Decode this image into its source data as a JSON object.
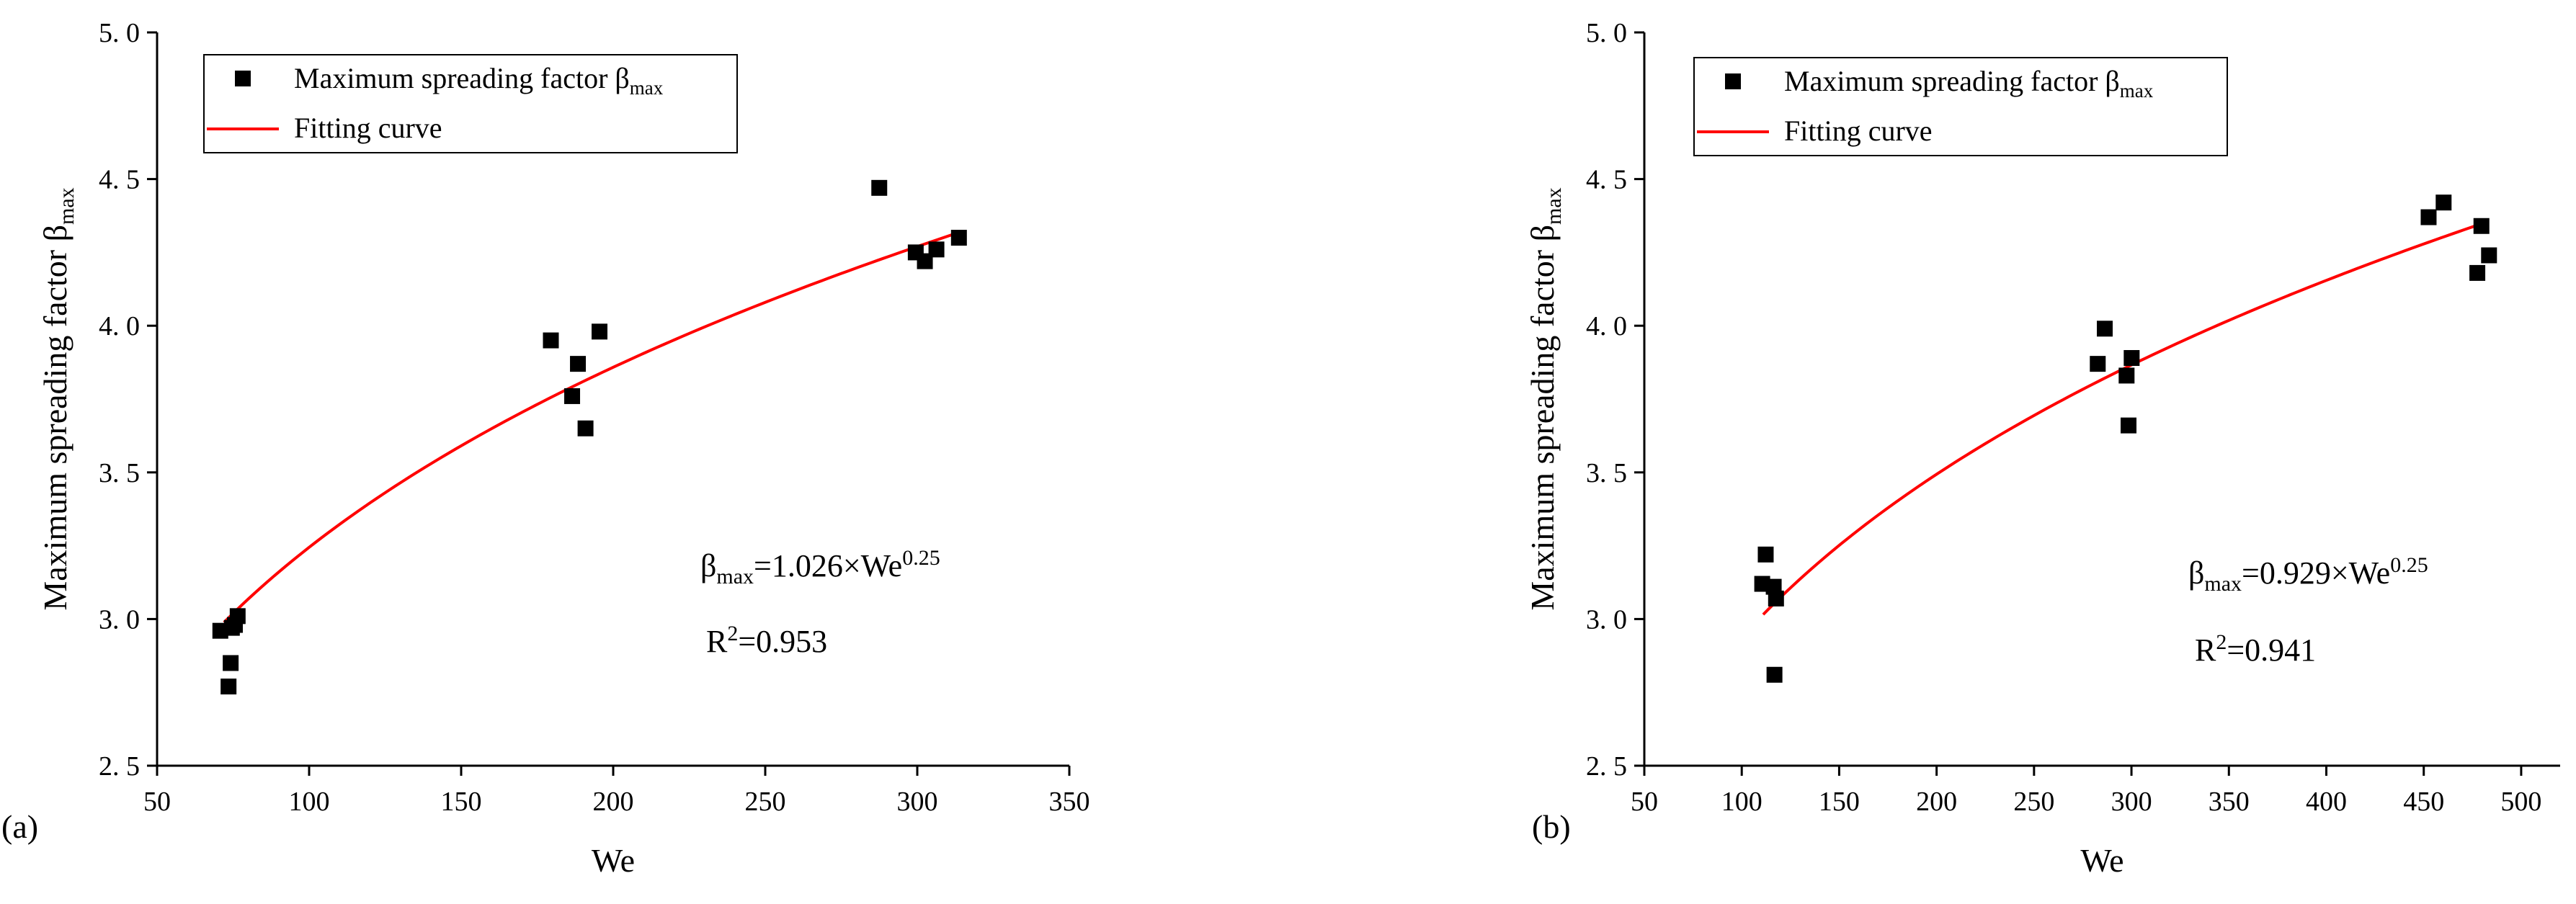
{
  "colors": {
    "points": "#000000",
    "fit": "#ff0000",
    "axis": "#000000"
  },
  "chart_data": [
    {
      "type": "scatter",
      "panel_label": "(a)",
      "xlabel": "We",
      "ylabel": "Maximum spreading factor β",
      "ylabel_sub": "max",
      "xlim": [
        50,
        350
      ],
      "ylim": [
        2.5,
        5.0
      ],
      "xticks": [
        50,
        100,
        150,
        200,
        250,
        300,
        350
      ],
      "yticks": [
        2.5,
        3.0,
        3.5,
        4.0,
        4.5,
        5.0
      ],
      "ytick_labels": [
        "2. 5",
        "3. 0",
        "3. 5",
        "4. 0",
        "4. 5",
        "5. 0"
      ],
      "grid": false,
      "legend_position": "top-left",
      "legend": [
        {
          "label": "Maximum spreading factor β",
          "sub": "max",
          "marker": "square"
        },
        {
          "label": "Fitting curve",
          "marker": "line"
        }
      ],
      "series": [
        {
          "name": "Maximum spreading factor βmax",
          "x": [
            70.8,
            74.6,
            75.6,
            74.2,
            73.5,
            76.5,
            179.5,
            188.4,
            186.5,
            195.5,
            190.9,
            287.5,
            299.5,
            302.5,
            306.3,
            313.7
          ],
          "y": [
            2.96,
            2.97,
            2.98,
            2.85,
            2.77,
            3.01,
            3.95,
            3.87,
            3.76,
            3.98,
            3.65,
            4.47,
            4.25,
            4.22,
            4.26,
            4.3
          ]
        },
        {
          "name": "Fitting curve",
          "type": "line",
          "coef": 1.026,
          "exponent": 0.25,
          "x_range": [
            72,
            313
          ]
        }
      ],
      "annotations": {
        "equation_prefix": "β",
        "equation_sub": "max",
        "equation_mid": "=1.026×We",
        "equation_sup": "0.25",
        "r2_prefix": "R",
        "r2_sup": "2",
        "r2_value": "=0.953"
      }
    },
    {
      "type": "scatter",
      "panel_label": "(b)",
      "xlabel": "We",
      "ylabel": "Maximum spreading factor β",
      "ylabel_sub": "max",
      "xlim": [
        50,
        520
      ],
      "ylim": [
        2.5,
        5.0
      ],
      "xticks": [
        50,
        100,
        150,
        200,
        250,
        300,
        350,
        400,
        450,
        500
      ],
      "yticks": [
        2.5,
        3.0,
        3.5,
        4.0,
        4.5,
        5.0
      ],
      "ytick_labels": [
        "2. 5",
        "3. 0",
        "3. 5",
        "4. 0",
        "4. 5",
        "5. 0"
      ],
      "grid": false,
      "legend_position": "top-left",
      "legend": [
        {
          "label": "Maximum spreading factor β",
          "sub": "max",
          "marker": "square"
        },
        {
          "label": "Fitting curve",
          "marker": "line"
        }
      ],
      "series": [
        {
          "name": "Maximum spreading factor βmax",
          "x": [
            110.5,
            112.3,
            116.4,
            117.6,
            116.8,
            282.7,
            286.3,
            297.5,
            300.1,
            298.5,
            452.5,
            460.2,
            479.6,
            477.5,
            483.5
          ],
          "y": [
            3.12,
            3.22,
            3.11,
            3.07,
            2.81,
            3.87,
            3.99,
            3.83,
            3.89,
            3.66,
            4.37,
            4.42,
            4.34,
            4.18,
            4.24
          ]
        },
        {
          "name": "Fitting curve",
          "type": "line",
          "coef": 0.929,
          "exponent": 0.25,
          "x_range": [
            111,
            480
          ]
        }
      ],
      "annotations": {
        "equation_prefix": "β",
        "equation_sub": "max",
        "equation_mid": "=0.929×We",
        "equation_sup": "0.25",
        "r2_prefix": "R",
        "r2_sup": "2",
        "r2_value": "=0.941"
      }
    }
  ]
}
